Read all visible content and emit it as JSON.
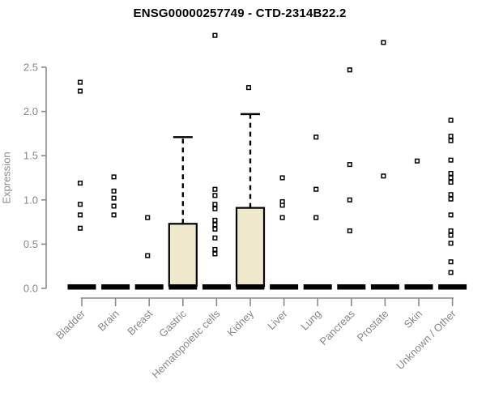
{
  "chart_data": {
    "type": "boxplot",
    "title": "ENSG00000257749 - CTD-2314B22.2",
    "ylabel": "Expression",
    "xlabel": "",
    "ylim": [
      0,
      2.5
    ],
    "yticks": [
      "0.0",
      "0.5",
      "1.0",
      "1.5",
      "2.0",
      "2.5"
    ],
    "grid": false,
    "legend": "none",
    "categories": [
      "Bladder",
      "Brain",
      "Breast",
      "Gastric",
      "Hematopoietic cells",
      "Kidney",
      "Liver",
      "Lung",
      "Pancreas",
      "Prostate",
      "Skin",
      "Unknown / Other"
    ],
    "groups": [
      {
        "name": "Bladder",
        "median": 0,
        "q3": null,
        "whisker_high": null,
        "points": [
          2.33,
          2.23,
          1.19,
          0.95,
          0.83,
          0.68
        ]
      },
      {
        "name": "Brain",
        "median": 0,
        "q3": null,
        "whisker_high": null,
        "points": [
          1.26,
          1.1,
          1.02,
          0.93,
          0.83
        ]
      },
      {
        "name": "Breast",
        "median": 0,
        "q3": null,
        "whisker_high": null,
        "points": [
          0.8,
          0.37
        ]
      },
      {
        "name": "Gastric",
        "median": 0,
        "q3": 0.73,
        "whisker_high": 1.71,
        "points": []
      },
      {
        "name": "Hematopoietic cells",
        "median": 0,
        "q3": null,
        "whisker_high": null,
        "points": [
          2.86,
          1.12,
          1.05,
          0.95,
          0.9,
          0.77,
          0.72,
          0.67,
          0.57,
          0.44,
          0.39
        ]
      },
      {
        "name": "Kidney",
        "median": 0,
        "q3": 0.91,
        "whisker_high": 1.97,
        "points": [
          2.27
        ]
      },
      {
        "name": "Liver",
        "median": 0,
        "q3": null,
        "whisker_high": null,
        "points": [
          1.25,
          0.98,
          0.94,
          0.8
        ]
      },
      {
        "name": "Lung",
        "median": 0,
        "q3": null,
        "whisker_high": null,
        "points": [
          1.71,
          1.12,
          0.8
        ]
      },
      {
        "name": "Pancreas",
        "median": 0,
        "q3": null,
        "whisker_high": null,
        "points": [
          2.47,
          1.4,
          1.0,
          0.65
        ]
      },
      {
        "name": "Prostate",
        "median": 0,
        "q3": null,
        "whisker_high": null,
        "points": [
          2.78,
          1.27
        ]
      },
      {
        "name": "Skin",
        "median": 0,
        "q3": null,
        "whisker_high": null,
        "points": [
          1.44
        ]
      },
      {
        "name": "Unknown / Other",
        "median": 0,
        "q3": null,
        "whisker_high": null,
        "points": [
          1.9,
          1.72,
          1.67,
          1.45,
          1.3,
          1.25,
          1.2,
          1.06,
          1.01,
          0.83,
          0.65,
          0.6,
          0.51,
          0.3,
          0.18
        ]
      }
    ],
    "colors": {
      "box_fill": "#EEE8CD",
      "box_border": "#000000",
      "median_bar": "#000000",
      "point_stroke": "#000000",
      "point_fill": "#ffffff",
      "axis_line": "#8a8a8a",
      "axis_text": "#878787",
      "title_text": "#000000"
    }
  }
}
